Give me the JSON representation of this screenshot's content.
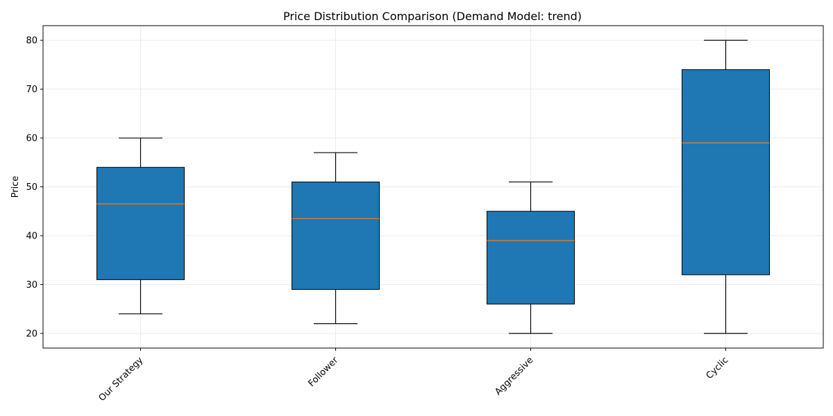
{
  "chart_data": {
    "type": "box",
    "title": "Price Distribution Comparison (Demand Model: trend)",
    "xlabel": "",
    "ylabel": "Price",
    "ylim": [
      17,
      83
    ],
    "yticks": [
      20,
      30,
      40,
      50,
      60,
      70,
      80
    ],
    "grid": true,
    "box_color": "#1f77b4",
    "median_color": "#ff7f0e",
    "categories": [
      "Our Strategy",
      "Follower",
      "Aggressive",
      "Cyclic"
    ],
    "boxes": [
      {
        "label": "Our Strategy",
        "whisker_low": 24,
        "q1": 31,
        "median": 46.5,
        "q3": 54,
        "whisker_high": 60
      },
      {
        "label": "Follower",
        "whisker_low": 22,
        "q1": 29,
        "median": 43.5,
        "q3": 51,
        "whisker_high": 57
      },
      {
        "label": "Aggressive",
        "whisker_low": 20,
        "q1": 26,
        "median": 39,
        "q3": 45,
        "whisker_high": 51
      },
      {
        "label": "Cyclic",
        "whisker_low": 20,
        "q1": 32,
        "median": 59,
        "q3": 74,
        "whisker_high": 80
      }
    ]
  }
}
